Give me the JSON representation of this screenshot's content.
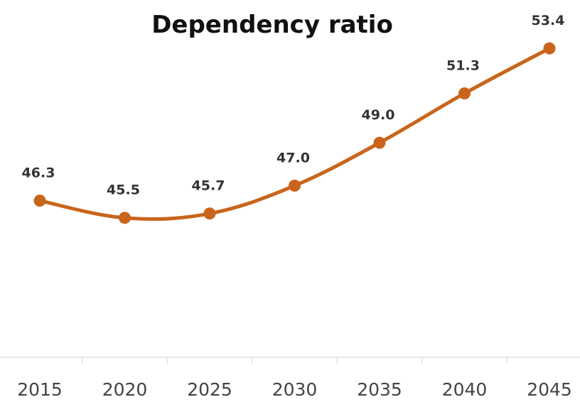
{
  "chart_data": {
    "type": "line",
    "title": "Dependency ratio",
    "xlabel": "",
    "ylabel": "",
    "categories": [
      "2015",
      "2020",
      "2025",
      "2030",
      "2035",
      "2040",
      "2045"
    ],
    "series": [
      {
        "values": [
          46.3,
          45.5,
          45.7,
          47.0,
          49.0,
          51.3,
          53.4
        ],
        "labels": [
          "46.3",
          "45.5",
          "45.7",
          "47.0",
          "49.0",
          "51.3",
          "53.4"
        ],
        "color": "#c8651b"
      }
    ],
    "ylim": [
      39,
      54
    ],
    "grid": false,
    "legend": "none",
    "smooth": true,
    "markers": "circle"
  }
}
